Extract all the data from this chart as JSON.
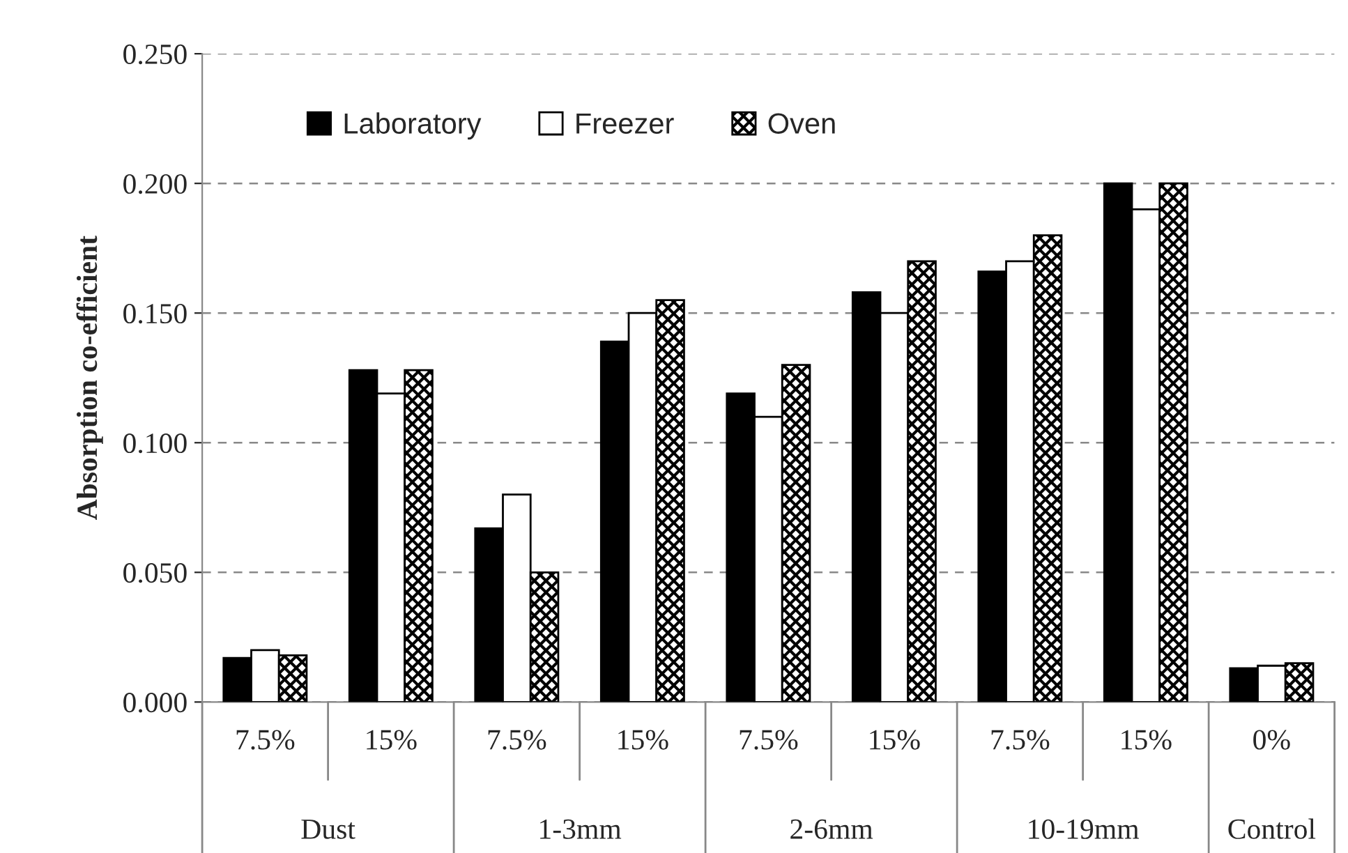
{
  "chart_data": {
    "type": "bar",
    "ylabel": "Absorption co-efficient",
    "categories": [
      "7.5%",
      "15%",
      "7.5%",
      "15%",
      "7.5%",
      "15%",
      "7.5%",
      "15%",
      "0%"
    ],
    "series": [
      {
        "name": "Laboratory",
        "color": "#000000",
        "values": [
          0.017,
          0.128,
          0.067,
          0.139,
          0.119,
          0.158,
          0.166,
          0.2,
          0.013
        ]
      },
      {
        "name": "Freezer",
        "color": "#ffffff",
        "values": [
          0.02,
          0.119,
          0.08,
          0.15,
          0.11,
          0.15,
          0.17,
          0.19,
          0.014
        ]
      },
      {
        "name": "Oven",
        "color": "#000000",
        "values": [
          0.018,
          0.128,
          0.05,
          0.155,
          0.13,
          0.17,
          0.18,
          0.2,
          0.015
        ]
      }
    ],
    "annotations": [
      "Dust",
      "1-3mm",
      "2-6mm",
      "10-19mm",
      "Control"
    ],
    "ylim": [
      0,
      0.25
    ],
    "yticks": [
      {
        "value": 0,
        "label": "0.000"
      },
      {
        "value": 0.05,
        "label": "0.050"
      },
      {
        "value": 0.1,
        "label": "0.100"
      },
      {
        "value": 0.15,
        "label": "0.150"
      },
      {
        "value": 0.2,
        "label": "0.200"
      },
      {
        "value": 0.25,
        "label": "0.250"
      }
    ],
    "grid": "y",
    "legend": "top left"
  }
}
